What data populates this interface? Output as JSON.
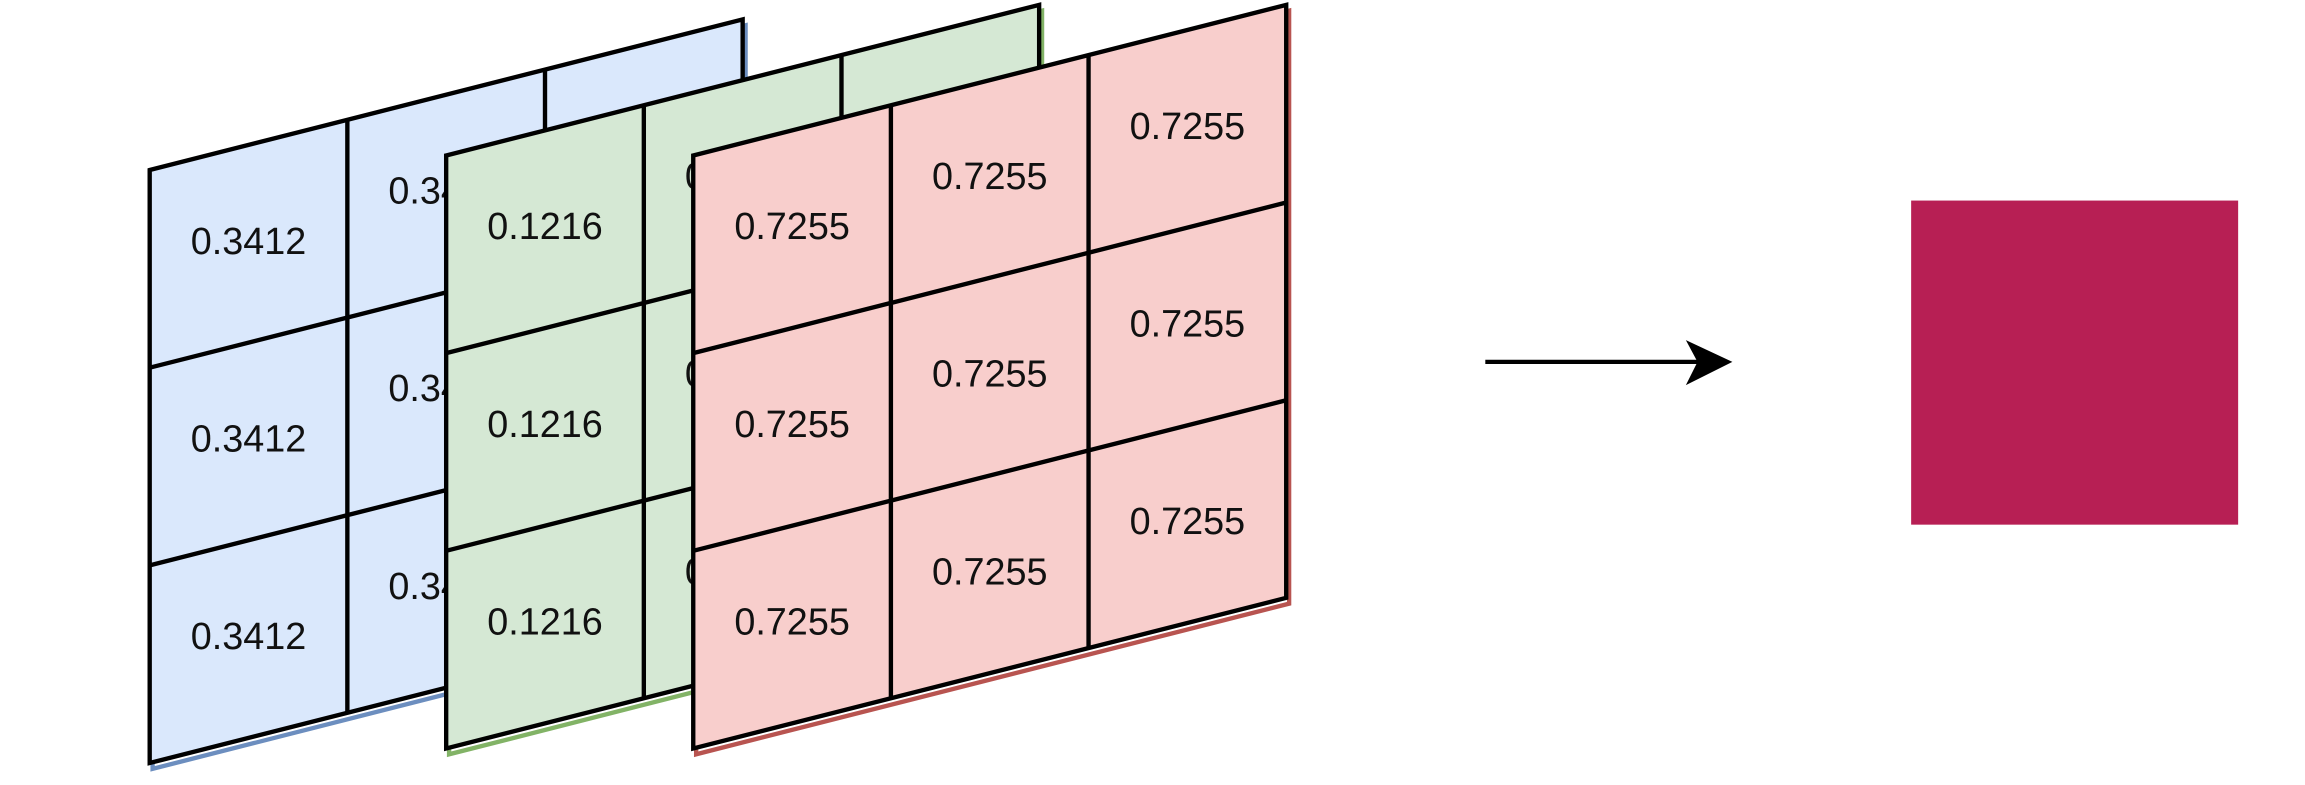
{
  "layers": [
    {
      "rows": [
        [
          "0.3412",
          "0.3412"
        ],
        [
          "0.3412",
          "0.3412"
        ],
        [
          "0.3412",
          "0.3412"
        ]
      ]
    },
    {
      "rows": [
        [
          "0.1216",
          "0.1216"
        ],
        [
          "0.1216",
          "0.1216"
        ],
        [
          "0.1216",
          "0.1216"
        ]
      ]
    },
    {
      "rows": [
        [
          "0.7255",
          "0.7255",
          "0.7255"
        ],
        [
          "0.7255",
          "0.7255",
          "0.7255"
        ],
        [
          "0.7255",
          "0.7255",
          "0.7255"
        ]
      ]
    }
  ]
}
